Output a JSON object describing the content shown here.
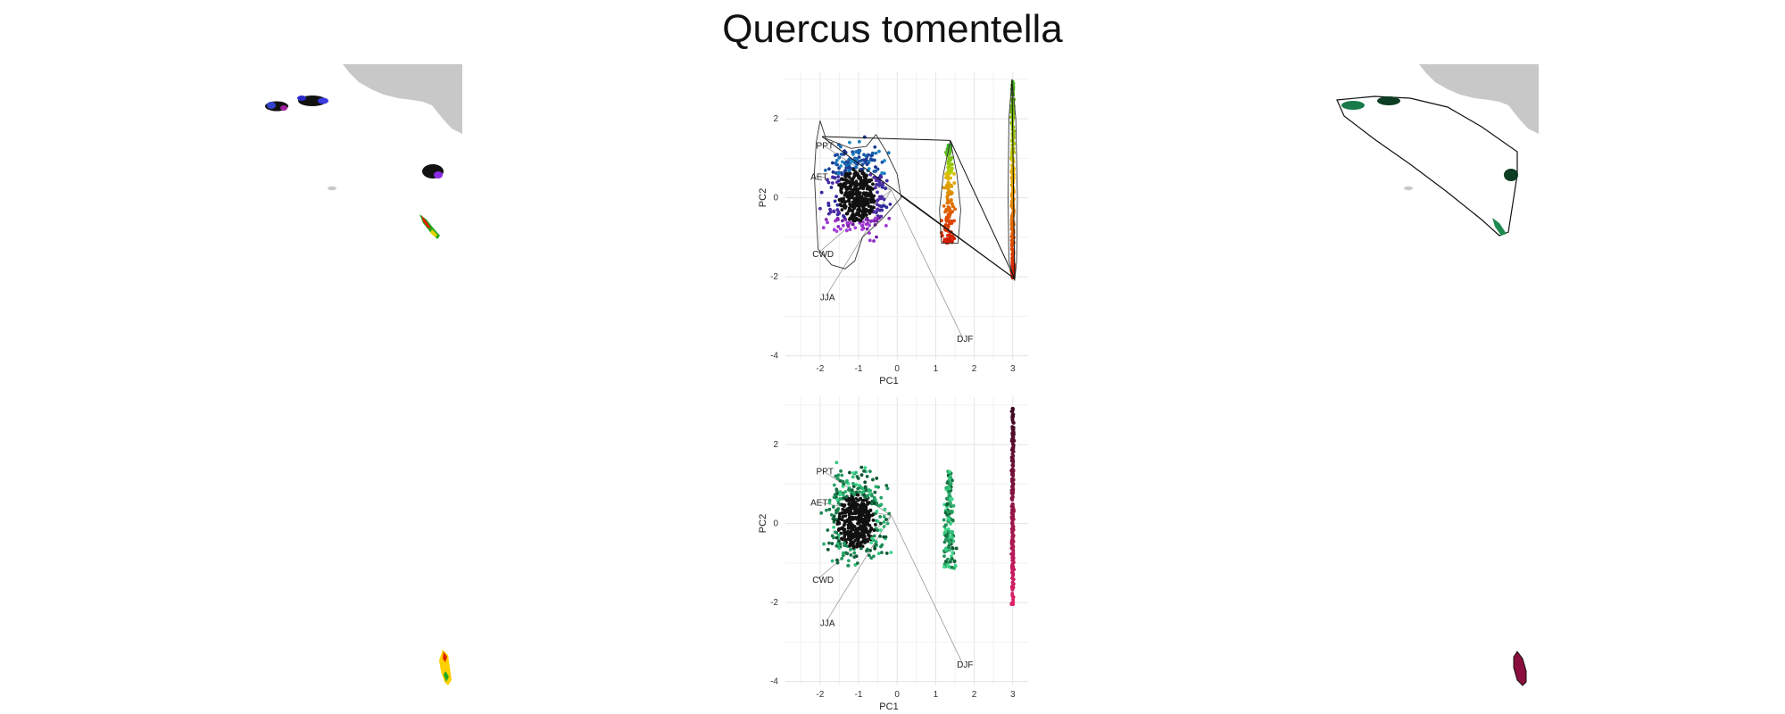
{
  "title": "Quercus tomentella",
  "chart_data": [
    {
      "type": "scatter",
      "panel": "pca-top",
      "color_scheme": "multi-hue (blue, purple, red, yellow, green) with black center",
      "xlabel": "PC1",
      "ylabel": "PC2",
      "xlim": [
        -2.9,
        3.4
      ],
      "ylim": [
        -4.1,
        3.2
      ],
      "xticks": [
        "-2",
        "-1",
        "0",
        "1",
        "2",
        "3"
      ],
      "yticks": [
        "2",
        "0",
        "-2",
        "-4"
      ],
      "xtick_values": [
        -2,
        -1,
        0,
        1,
        2,
        3
      ],
      "ytick_values": [
        2,
        0,
        -2,
        -4
      ],
      "grid": true,
      "hulls": true,
      "hull_connector_lines": true,
      "variable_labels": [
        {
          "label": "PPT",
          "x": -2.1,
          "y": 1.25
        },
        {
          "label": "AET",
          "x": -2.25,
          "y": 0.45
        },
        {
          "label": "CWD",
          "x": -2.2,
          "y": -1.5
        },
        {
          "label": "JJA",
          "x": -2.0,
          "y": -2.6
        },
        {
          "label": "DJF",
          "x": 1.55,
          "y": -3.65
        }
      ],
      "clusters": [
        {
          "name": "",
          "x_range": [
            -2.1,
            0.1
          ],
          "y_range": [
            -1.8,
            2.0
          ],
          "n": 560
        },
        {
          "name": "",
          "x_range": [
            1.1,
            1.7
          ],
          "y_range": [
            -1.2,
            1.4
          ],
          "n": 150
        },
        {
          "name": "",
          "x_range": [
            2.9,
            3.15
          ],
          "y_range": [
            -2.1,
            3.0
          ],
          "n": 260
        }
      ]
    },
    {
      "type": "scatter",
      "panel": "pca-bottom",
      "color_scheme": "green with crimson cluster",
      "xlabel": "PC1",
      "ylabel": "PC2",
      "xlim": [
        -2.9,
        3.4
      ],
      "ylim": [
        -4.1,
        3.2
      ],
      "xticks": [
        "-2",
        "-1",
        "0",
        "1",
        "2",
        "3"
      ],
      "yticks": [
        "2",
        "0",
        "-2",
        "-4"
      ],
      "xtick_values": [
        -2,
        -1,
        0,
        1,
        2,
        3
      ],
      "ytick_values": [
        2,
        0,
        -2,
        -4
      ],
      "grid": true,
      "hulls": false,
      "variable_labels": [
        {
          "label": "PPT",
          "x": -2.1,
          "y": 1.25
        },
        {
          "label": "AET",
          "x": -2.25,
          "y": 0.45
        },
        {
          "label": "CWD",
          "x": -2.2,
          "y": -1.5
        },
        {
          "label": "JJA",
          "x": -2.0,
          "y": -2.6
        },
        {
          "label": "DJF",
          "x": 1.55,
          "y": -3.65
        }
      ]
    }
  ],
  "maps": {
    "land_color": "#c8c8c8",
    "left": {
      "fill": "multi-hue patches"
    },
    "right": {
      "fill": "green and crimson patches with black outline hull"
    }
  }
}
